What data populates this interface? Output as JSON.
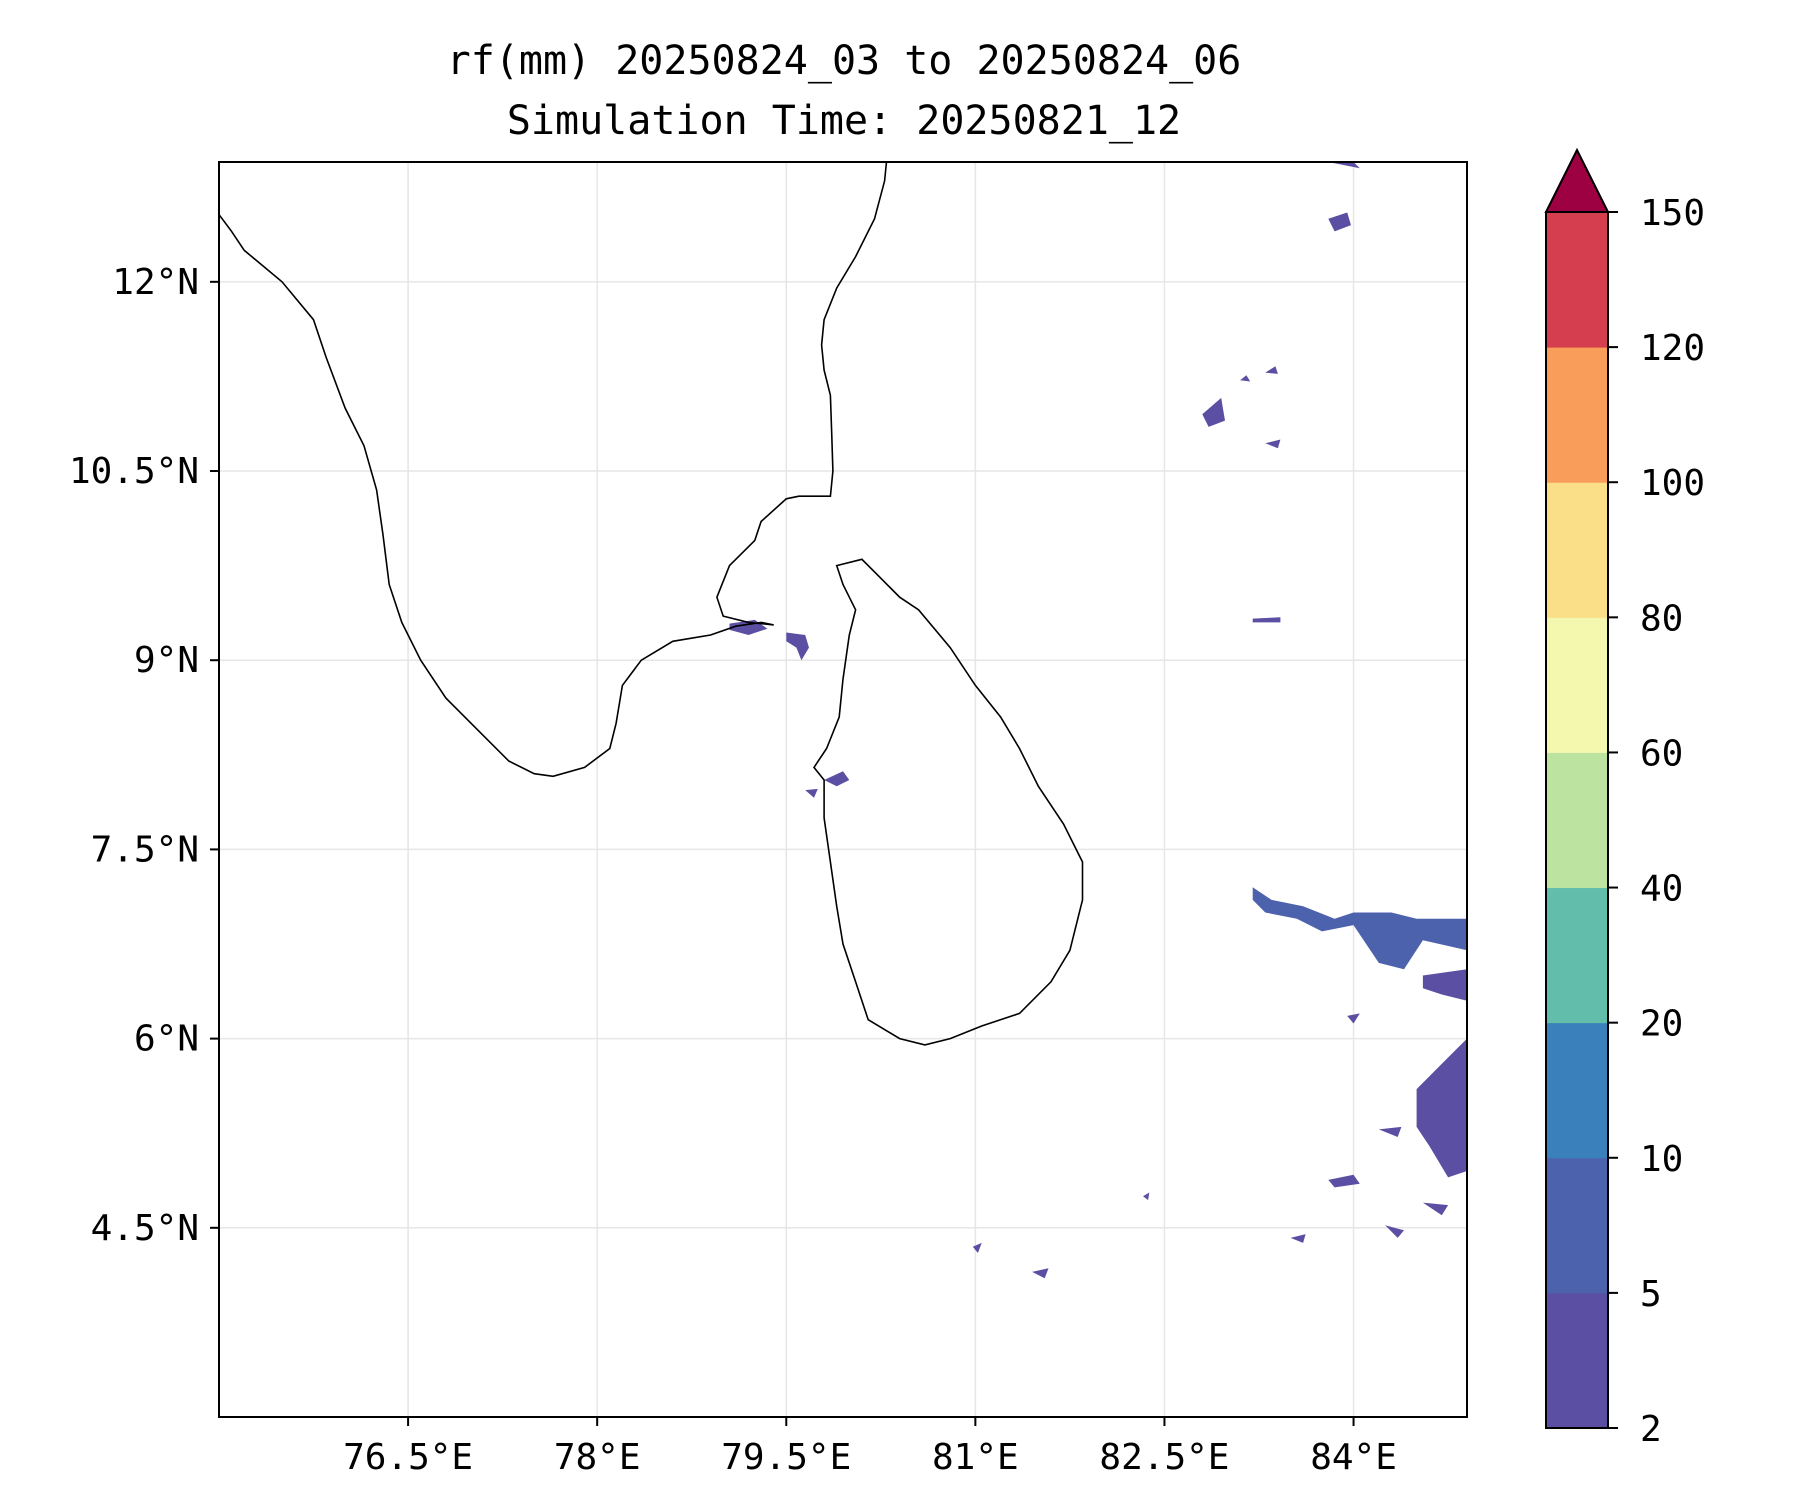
{
  "chart_data": {
    "type": "contour-map",
    "title": "rf(mm) 20250824_03 to 20250824_06",
    "subtitle": "Simulation Time: 20250821_12",
    "xlabel": "",
    "ylabel": "",
    "xlim": [
      75.0,
      84.9
    ],
    "ylim": [
      3.0,
      12.95
    ],
    "xticks": [
      76.5,
      78,
      79.5,
      81,
      82.5,
      84
    ],
    "xtick_labels": [
      "76.5°E",
      "78°E",
      "79.5°E",
      "81°E",
      "82.5°E",
      "84°E"
    ],
    "yticks": [
      4.5,
      6,
      7.5,
      9,
      10.5,
      12
    ],
    "ytick_labels": [
      "4.5°N",
      "6°N",
      "7.5°N",
      "9°N",
      "10.5°N",
      "12°N"
    ],
    "grid": true,
    "colorbar": {
      "levels": [
        2,
        5,
        10,
        20,
        40,
        60,
        80,
        100,
        120,
        150
      ],
      "tick_labels": [
        "2",
        "5",
        "10",
        "20",
        "40",
        "60",
        "80",
        "100",
        "120",
        "150"
      ],
      "colors": [
        "#5b4fa3",
        "#4d62ad",
        "#3a80bb",
        "#62bdab",
        "#bde3a0",
        "#f3f8ae",
        "#fbde88",
        "#f89d5a",
        "#d53e4f"
      ],
      "extend_color": "#9e0142",
      "extend": "max"
    },
    "coast_color": "#000000",
    "rain_regions": [
      {
        "name": "rain-patch-gulf-1",
        "level": 0,
        "points": [
          [
            79.05,
            9.29
          ],
          [
            79.25,
            9.32
          ],
          [
            79.35,
            9.25
          ],
          [
            79.2,
            9.2
          ],
          [
            79.05,
            9.24
          ]
        ]
      },
      {
        "name": "rain-patch-gulf-2",
        "level": 0,
        "points": [
          [
            79.5,
            9.22
          ],
          [
            79.65,
            9.2
          ],
          [
            79.68,
            9.1
          ],
          [
            79.62,
            9.0
          ],
          [
            79.58,
            9.1
          ],
          [
            79.5,
            9.15
          ]
        ]
      },
      {
        "name": "rain-patch-srilanka-west",
        "level": 0,
        "points": [
          [
            79.8,
            8.05
          ],
          [
            79.95,
            8.12
          ],
          [
            80.0,
            8.05
          ],
          [
            79.9,
            8.0
          ]
        ]
      },
      {
        "name": "rain-patch-srilanka-west-2",
        "level": 0,
        "points": [
          [
            79.65,
            7.97
          ],
          [
            79.75,
            7.98
          ],
          [
            79.72,
            7.91
          ]
        ]
      },
      {
        "name": "rain-patch-n-1",
        "level": 0,
        "points": [
          [
            83.8,
            12.5
          ],
          [
            83.95,
            12.55
          ],
          [
            83.98,
            12.45
          ],
          [
            83.85,
            12.4
          ]
        ]
      },
      {
        "name": "rain-patch-n-2",
        "level": 0,
        "points": [
          [
            83.8,
            12.95
          ],
          [
            84.0,
            12.95
          ],
          [
            84.05,
            12.9
          ],
          [
            83.9,
            12.93
          ]
        ]
      },
      {
        "name": "rain-patch-n-3",
        "level": 0,
        "points": [
          [
            82.8,
            10.95
          ],
          [
            82.95,
            11.08
          ],
          [
            82.98,
            10.9
          ],
          [
            82.85,
            10.85
          ]
        ]
      },
      {
        "name": "rain-patch-n-4",
        "level": 0,
        "points": [
          [
            83.3,
            11.28
          ],
          [
            83.38,
            11.33
          ],
          [
            83.4,
            11.27
          ]
        ]
      },
      {
        "name": "rain-patch-n-5",
        "level": 0,
        "points": [
          [
            83.1,
            11.22
          ],
          [
            83.15,
            11.26
          ],
          [
            83.18,
            11.21
          ]
        ]
      },
      {
        "name": "rain-patch-n-6",
        "level": 0,
        "points": [
          [
            83.3,
            10.72
          ],
          [
            83.42,
            10.75
          ],
          [
            83.4,
            10.68
          ]
        ]
      },
      {
        "name": "rain-patch-n-7",
        "level": 0,
        "points": [
          [
            83.2,
            9.33
          ],
          [
            83.42,
            9.34
          ],
          [
            83.42,
            9.3
          ],
          [
            83.2,
            9.3
          ]
        ]
      },
      {
        "name": "rain-band-east",
        "level": 1,
        "points": [
          [
            83.2,
            7.2
          ],
          [
            83.35,
            7.1
          ],
          [
            83.6,
            7.05
          ],
          [
            83.85,
            6.95
          ],
          [
            84.0,
            7.0
          ],
          [
            84.3,
            7.0
          ],
          [
            84.5,
            6.95
          ],
          [
            84.9,
            6.95
          ],
          [
            84.9,
            6.7
          ],
          [
            84.55,
            6.78
          ],
          [
            84.4,
            6.55
          ],
          [
            84.2,
            6.6
          ],
          [
            84.0,
            6.9
          ],
          [
            83.75,
            6.85
          ],
          [
            83.55,
            6.95
          ],
          [
            83.3,
            7.0
          ],
          [
            83.2,
            7.1
          ]
        ]
      },
      {
        "name": "rain-band-east-2",
        "level": 0,
        "points": [
          [
            84.55,
            6.5
          ],
          [
            84.9,
            6.55
          ],
          [
            84.9,
            6.3
          ],
          [
            84.7,
            6.35
          ],
          [
            84.55,
            6.4
          ]
        ]
      },
      {
        "name": "rain-patch-se-1",
        "level": 0,
        "points": [
          [
            84.5,
            5.6
          ],
          [
            84.75,
            5.85
          ],
          [
            84.9,
            6.0
          ],
          [
            84.9,
            4.95
          ],
          [
            84.75,
            4.9
          ],
          [
            84.6,
            5.15
          ],
          [
            84.5,
            5.3
          ]
        ]
      },
      {
        "name": "rain-patch-se-2",
        "level": 0,
        "points": [
          [
            84.55,
            4.7
          ],
          [
            84.7,
            4.6
          ],
          [
            84.75,
            4.68
          ]
        ]
      },
      {
        "name": "rain-patch-se-3",
        "level": 0,
        "points": [
          [
            83.8,
            4.88
          ],
          [
            84.0,
            4.92
          ],
          [
            84.05,
            4.85
          ],
          [
            83.85,
            4.82
          ]
        ]
      },
      {
        "name": "rain-patch-se-4",
        "level": 0,
        "points": [
          [
            84.25,
            4.52
          ],
          [
            84.35,
            4.42
          ],
          [
            84.4,
            4.48
          ]
        ]
      },
      {
        "name": "rain-patch-se-5",
        "level": 0,
        "points": [
          [
            83.95,
            6.18
          ],
          [
            84.05,
            6.2
          ],
          [
            84.0,
            6.12
          ]
        ]
      },
      {
        "name": "rain-patch-se-6",
        "level": 0,
        "points": [
          [
            84.2,
            5.28
          ],
          [
            84.38,
            5.3
          ],
          [
            84.35,
            5.22
          ]
        ]
      },
      {
        "name": "rain-patch-se-7",
        "level": 0,
        "points": [
          [
            83.5,
            4.42
          ],
          [
            83.62,
            4.45
          ],
          [
            83.6,
            4.38
          ]
        ]
      },
      {
        "name": "rain-patch-s-1",
        "level": 0,
        "points": [
          [
            80.98,
            4.35
          ],
          [
            81.05,
            4.38
          ],
          [
            81.02,
            4.3
          ]
        ]
      },
      {
        "name": "rain-patch-s-2",
        "level": 0,
        "points": [
          [
            81.45,
            4.15
          ],
          [
            81.58,
            4.18
          ],
          [
            81.55,
            4.1
          ]
        ]
      },
      {
        "name": "rain-patch-s-3",
        "level": 0,
        "points": [
          [
            82.33,
            4.75
          ],
          [
            82.38,
            4.78
          ],
          [
            82.37,
            4.72
          ]
        ]
      }
    ]
  }
}
